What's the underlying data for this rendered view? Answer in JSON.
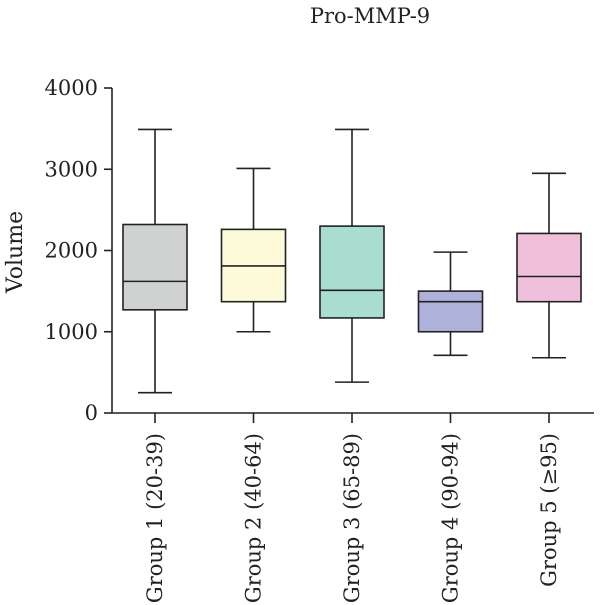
{
  "chart_data": {
    "type": "box",
    "title": "Pro-MMP-9",
    "ylabel": "Volume",
    "xlabel": "",
    "ylim": [
      0,
      4000
    ],
    "yticks": [
      0,
      1000,
      2000,
      3000,
      4000
    ],
    "grid": false,
    "categories": [
      "Group 1 (20-39)",
      "Group 2 (40-64)",
      "Group 3 (65-89)",
      "Group 4 (90-94)",
      "Group 5 (≥95)"
    ],
    "boxes": [
      {
        "min": 250,
        "q1": 1270,
        "median": 1620,
        "q3": 2320,
        "max": 3490,
        "color": "#cfd2d1"
      },
      {
        "min": 1000,
        "q1": 1370,
        "median": 1810,
        "q3": 2260,
        "max": 3010,
        "color": "#fcfad9"
      },
      {
        "min": 380,
        "q1": 1170,
        "median": 1510,
        "q3": 2300,
        "max": 3490,
        "color": "#a9ddd0"
      },
      {
        "min": 710,
        "q1": 1000,
        "median": 1370,
        "q3": 1500,
        "max": 1980,
        "color": "#aeb1da"
      },
      {
        "min": 680,
        "q1": 1370,
        "median": 1680,
        "q3": 2210,
        "max": 2950,
        "color": "#f0bfdb"
      }
    ]
  }
}
